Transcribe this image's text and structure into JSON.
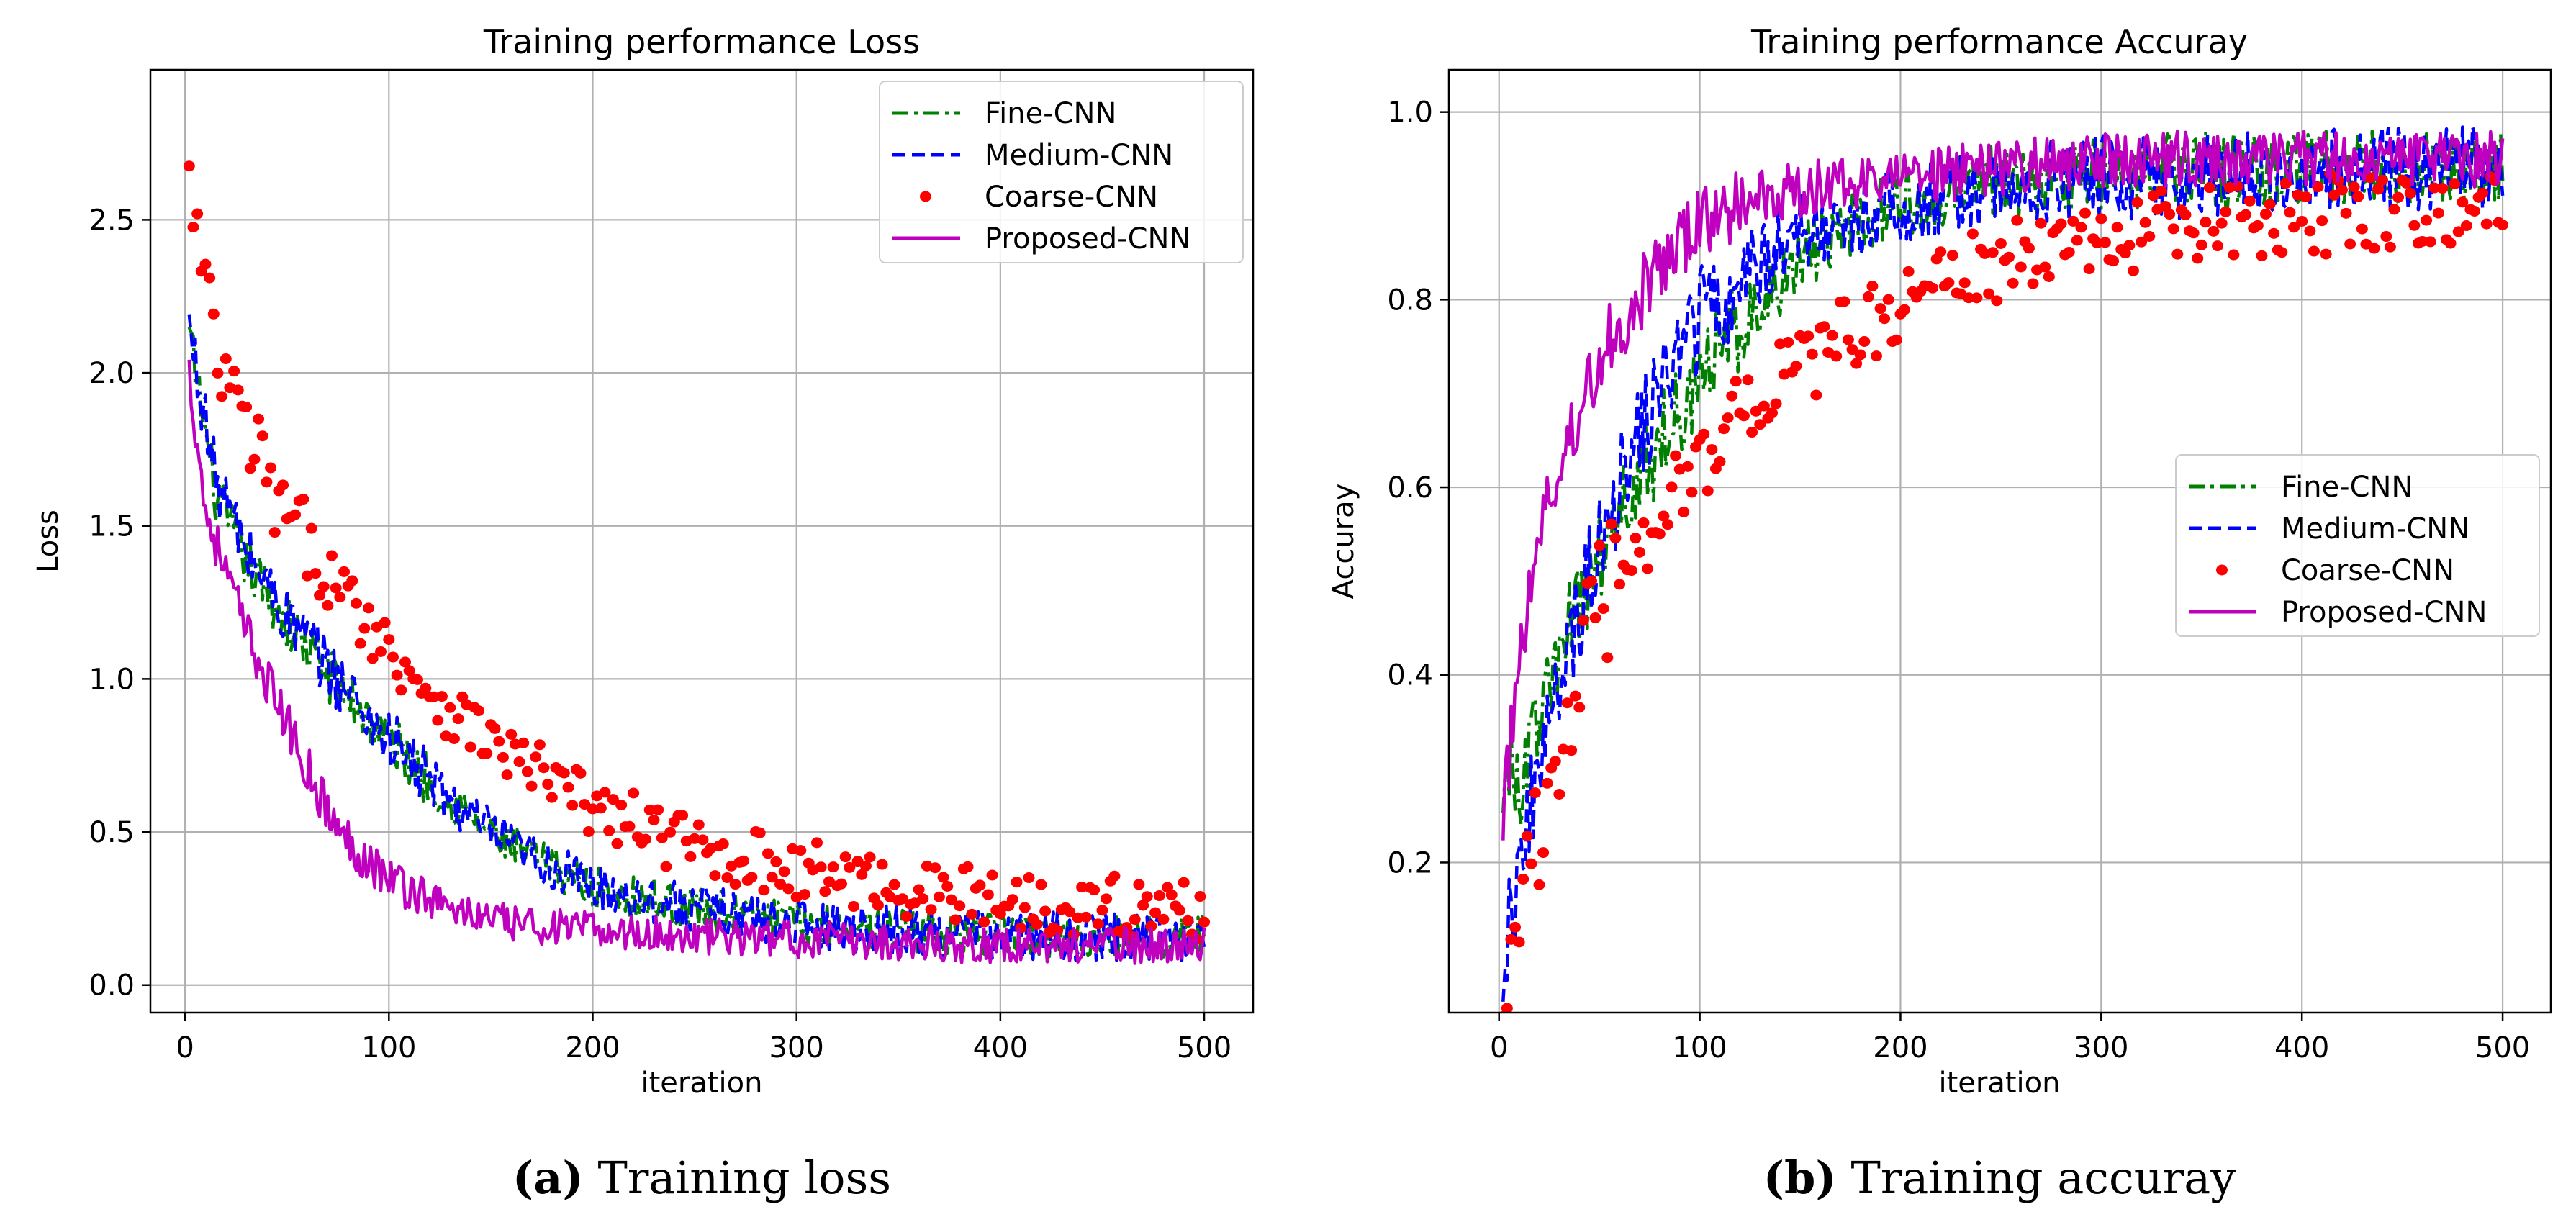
{
  "colors": {
    "fine": "#008000",
    "medium": "#0000ff",
    "coarse": "#ff0000",
    "proposed": "#bf00bf"
  },
  "chart_data": [
    {
      "type": "line",
      "title": "Training performance Loss",
      "xlabel": "iteration",
      "ylabel": "Loss",
      "xlim": [
        -17,
        524
      ],
      "ylim": [
        -0.09,
        2.99
      ],
      "xticks": [
        0,
        100,
        200,
        300,
        400,
        500
      ],
      "xtick_labels": [
        "0",
        "100",
        "200",
        "300",
        "400",
        "500"
      ],
      "yticks": [
        0.0,
        0.5,
        1.0,
        1.5,
        2.0,
        2.5
      ],
      "ytick_labels": [
        "0.0",
        "0.5",
        "1.0",
        "1.5",
        "2.0",
        "2.5"
      ],
      "grid": true,
      "legend_position": "top-right",
      "caption_label": "(a)",
      "caption_text": " Training loss",
      "series": [
        {
          "name": "Fine-CNN",
          "style": "dashdot",
          "color_key": "fine",
          "x": [
            2,
            15,
            30,
            50,
            75,
            100,
            130,
            160,
            200,
            250,
            300,
            350,
            400,
            450,
            500
          ],
          "values": [
            2.12,
            1.6,
            1.38,
            1.18,
            0.98,
            0.8,
            0.6,
            0.45,
            0.32,
            0.25,
            0.2,
            0.18,
            0.16,
            0.16,
            0.16
          ],
          "noise": 0.07
        },
        {
          "name": "Medium-CNN",
          "style": "dashed",
          "color_key": "medium",
          "x": [
            2,
            15,
            30,
            50,
            75,
            100,
            130,
            160,
            200,
            250,
            300,
            350,
            400,
            450,
            500
          ],
          "values": [
            2.15,
            1.65,
            1.42,
            1.2,
            1.0,
            0.8,
            0.6,
            0.45,
            0.32,
            0.25,
            0.2,
            0.18,
            0.16,
            0.16,
            0.16
          ],
          "noise": 0.08
        },
        {
          "name": "Coarse-CNN",
          "style": "dots",
          "color_key": "coarse",
          "x": [
            2,
            15,
            30,
            50,
            75,
            100,
            130,
            160,
            200,
            250,
            300,
            350,
            400,
            450,
            500
          ],
          "values": [
            2.6,
            2.05,
            1.8,
            1.5,
            1.3,
            1.1,
            0.9,
            0.75,
            0.58,
            0.45,
            0.38,
            0.32,
            0.28,
            0.26,
            0.24
          ],
          "noise": 0.1
        },
        {
          "name": "Proposed-CNN",
          "style": "solid",
          "color_key": "proposed",
          "x": [
            2,
            10,
            20,
            30,
            50,
            75,
            100,
            130,
            160,
            200,
            250,
            300,
            350,
            400,
            450,
            500
          ],
          "values": [
            2.0,
            1.55,
            1.35,
            1.15,
            0.85,
            0.5,
            0.35,
            0.25,
            0.2,
            0.18,
            0.16,
            0.15,
            0.14,
            0.13,
            0.13,
            0.13
          ],
          "noise": 0.06
        }
      ]
    },
    {
      "type": "line",
      "title": "Training performance Accuray",
      "xlabel": "iteration",
      "ylabel": "Accuray",
      "xlim": [
        -25,
        524
      ],
      "ylim": [
        0.04,
        1.045
      ],
      "xticks": [
        0,
        100,
        200,
        300,
        400,
        500
      ],
      "xtick_labels": [
        "0",
        "100",
        "200",
        "300",
        "400",
        "500"
      ],
      "yticks": [
        0.2,
        0.4,
        0.6,
        0.8,
        1.0
      ],
      "ytick_labels": [
        "0.2",
        "0.4",
        "0.6",
        "0.8",
        "1.0"
      ],
      "grid": true,
      "legend_position": "center-right",
      "caption_label": "(b)",
      "caption_text": " Training accuray",
      "series": [
        {
          "name": "Fine-CNN",
          "style": "dashdot",
          "color_key": "fine",
          "x": [
            2,
            10,
            20,
            30,
            50,
            75,
            100,
            130,
            160,
            200,
            250,
            300,
            350,
            400,
            450,
            500
          ],
          "values": [
            0.3,
            0.28,
            0.35,
            0.42,
            0.53,
            0.63,
            0.72,
            0.8,
            0.86,
            0.9,
            0.93,
            0.93,
            0.94,
            0.94,
            0.94,
            0.94
          ],
          "noise": 0.04
        },
        {
          "name": "Medium-CNN",
          "style": "dashed",
          "color_key": "medium",
          "x": [
            2,
            10,
            20,
            30,
            50,
            75,
            100,
            130,
            160,
            200,
            250,
            300,
            350,
            400,
            450,
            500
          ],
          "values": [
            0.1,
            0.2,
            0.3,
            0.38,
            0.55,
            0.68,
            0.78,
            0.84,
            0.88,
            0.9,
            0.92,
            0.93,
            0.93,
            0.94,
            0.94,
            0.94
          ],
          "noise": 0.045
        },
        {
          "name": "Coarse-CNN",
          "style": "dots",
          "color_key": "coarse",
          "x": [
            2,
            10,
            20,
            30,
            50,
            75,
            100,
            130,
            160,
            200,
            250,
            300,
            350,
            400,
            450,
            500
          ],
          "values": [
            0.09,
            0.15,
            0.22,
            0.33,
            0.47,
            0.56,
            0.63,
            0.7,
            0.74,
            0.8,
            0.84,
            0.86,
            0.88,
            0.89,
            0.9,
            0.9
          ],
          "noise": 0.045
        },
        {
          "name": "Proposed-CNN",
          "style": "solid",
          "color_key": "proposed",
          "x": [
            2,
            10,
            20,
            30,
            50,
            75,
            100,
            130,
            160,
            200,
            250,
            300,
            350,
            400,
            450,
            500
          ],
          "values": [
            0.25,
            0.42,
            0.55,
            0.62,
            0.74,
            0.82,
            0.88,
            0.91,
            0.92,
            0.93,
            0.94,
            0.95,
            0.95,
            0.95,
            0.95,
            0.95
          ],
          "noise": 0.03
        }
      ]
    }
  ]
}
